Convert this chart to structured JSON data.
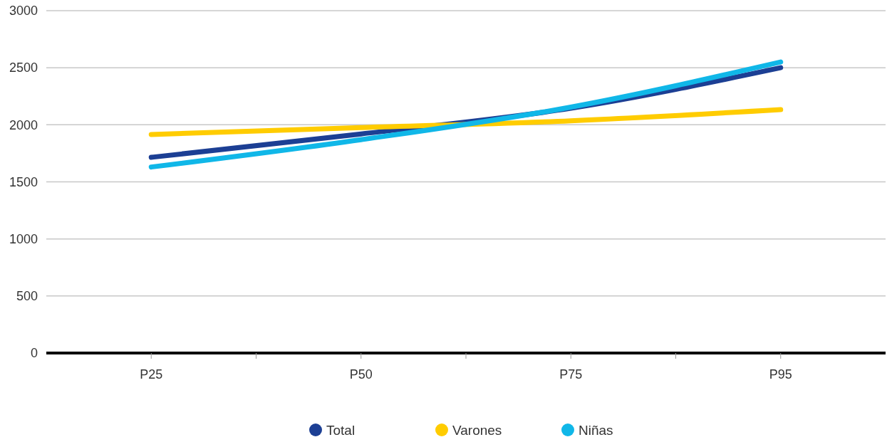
{
  "chart_data": {
    "type": "line",
    "categories": [
      "P25",
      "P50",
      "P75",
      "P95"
    ],
    "series": [
      {
        "name": "Total",
        "color": "#1c3f94",
        "values": [
          1715,
          1920,
          2145,
          2500
        ]
      },
      {
        "name": "Varones",
        "color": "#ffcc00",
        "values": [
          1915,
          1975,
          2035,
          2133
        ]
      },
      {
        "name": "Niñas",
        "color": "#10b7e8",
        "values": [
          1630,
          1870,
          2155,
          2550
        ]
      }
    ],
    "ylim": [
      0,
      3000
    ],
    "yticks": [
      0,
      500,
      1000,
      1500,
      2000,
      2500,
      3000
    ],
    "grid": "y",
    "legend": "bottom",
    "marker": "none",
    "line_style": "solid"
  }
}
